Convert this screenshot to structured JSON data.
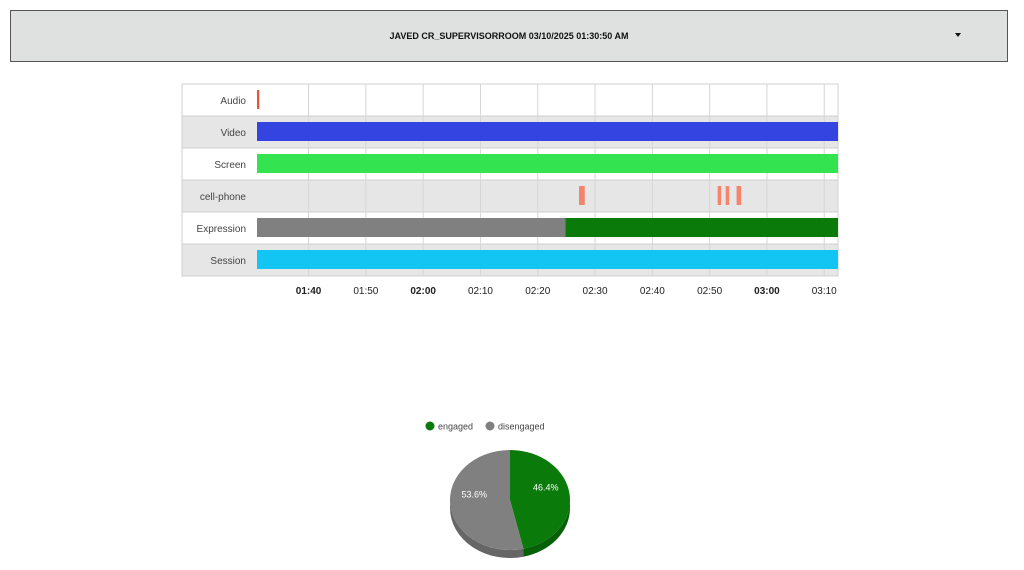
{
  "header": {
    "title": "JAVED CR_SUPERVISORROOM 03/10/2025 01:30:50 AM",
    "dropdown_icon": "caret-down-icon"
  },
  "timeline": {
    "range": [
      "01:31",
      "03:12.4"
    ],
    "rows": [
      {
        "label": "Audio",
        "color": "#e8553a",
        "segments": [
          [
            "01:31",
            "01:31.4"
          ]
        ]
      },
      {
        "label": "Video",
        "color": "#3344e0",
        "segments": [
          [
            "01:31",
            "03:12.4"
          ]
        ]
      },
      {
        "label": "Screen",
        "color": "#33e34f",
        "segments": [
          [
            "01:31",
            "03:12.4"
          ]
        ]
      },
      {
        "label": "cell-phone",
        "color": "#f5846a",
        "segments": [
          [
            "02:27.2",
            "02:28.2"
          ],
          [
            "02:51.4",
            "02:52"
          ],
          [
            "02:52.8",
            "02:53.4"
          ],
          [
            "02:54.7",
            "02:55.5"
          ]
        ]
      },
      {
        "label": "Expression",
        "segments": [
          [
            "01:31",
            "02:24.8",
            "#808080"
          ],
          [
            "02:24.8",
            "03:12.4",
            "#0a7a0a"
          ]
        ]
      },
      {
        "label": "Session",
        "color": "#12c5f2",
        "segments": [
          [
            "01:31",
            "03:12.4"
          ]
        ]
      }
    ],
    "ticks": [
      {
        "t": "01:40",
        "bold": true
      },
      {
        "t": "01:50"
      },
      {
        "t": "02:00",
        "bold": true
      },
      {
        "t": "02:10"
      },
      {
        "t": "02:20"
      },
      {
        "t": "02:30"
      },
      {
        "t": "02:40"
      },
      {
        "t": "02:50"
      },
      {
        "t": "03:00",
        "bold": true
      },
      {
        "t": "03:10"
      }
    ]
  },
  "chart_data": {
    "type": "pie",
    "legend": [
      "engaged",
      "disengaged"
    ],
    "legend_position": "top",
    "slices": [
      {
        "name": "engaged",
        "value": 46.4,
        "label": "46.4%",
        "color": "#0a7a0a"
      },
      {
        "name": "disengaged",
        "value": 53.6,
        "label": "53.6%",
        "color": "#808080"
      }
    ],
    "style": "3d"
  }
}
